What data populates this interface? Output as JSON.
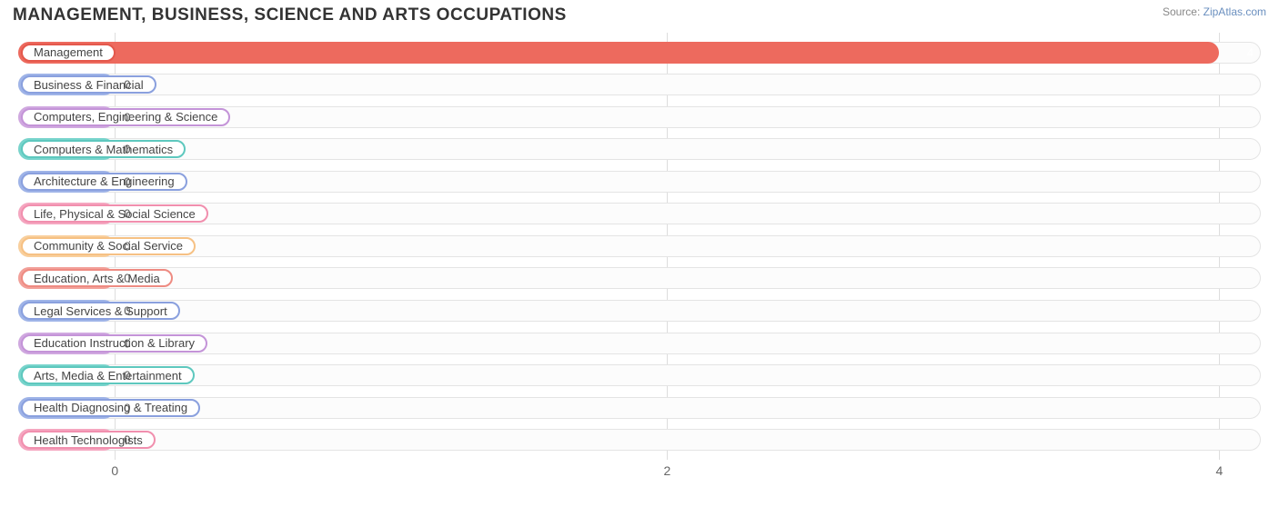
{
  "title": "MANAGEMENT, BUSINESS, SCIENCE AND ARTS OCCUPATIONS",
  "source_prefix": "Source: ",
  "source_link": "ZipAtlas.com",
  "chart": {
    "type": "bar-horizontal",
    "xmin": -0.35,
    "xmax": 4.15,
    "xticks": [
      0,
      2,
      4
    ],
    "track_bg": "#fcfcfc",
    "track_border": "#e4e4e4",
    "grid_color": "#dddddd",
    "pill_bg": "#ffffff",
    "label_fontsize": 13,
    "title_fontsize": 19,
    "title_color": "#333333",
    "bars": [
      {
        "label": "Management",
        "value": 4,
        "fill": "#ed6a5e",
        "border": "#e4584c"
      },
      {
        "label": "Business & Financial",
        "value": 0,
        "fill": "#9fb4e8",
        "border": "#8aa0de"
      },
      {
        "label": "Computers, Engineering & Science",
        "value": 0,
        "fill": "#d0a8e0",
        "border": "#c494d8"
      },
      {
        "label": "Computers & Mathematics",
        "value": 0,
        "fill": "#78d4cc",
        "border": "#5ec8be"
      },
      {
        "label": "Architecture & Engineering",
        "value": 0,
        "fill": "#9fb4e8",
        "border": "#8aa0de"
      },
      {
        "label": "Life, Physical & Social Science",
        "value": 0,
        "fill": "#f5a6c0",
        "border": "#f18fae"
      },
      {
        "label": "Community & Social Service",
        "value": 0,
        "fill": "#f9cf9c",
        "border": "#f6c184"
      },
      {
        "label": "Education, Arts & Media",
        "value": 0,
        "fill": "#f2a099",
        "border": "#ee8b82"
      },
      {
        "label": "Legal Services & Support",
        "value": 0,
        "fill": "#9fb4e8",
        "border": "#8aa0de"
      },
      {
        "label": "Education Instruction & Library",
        "value": 0,
        "fill": "#d0a8e0",
        "border": "#c494d8"
      },
      {
        "label": "Arts, Media & Entertainment",
        "value": 0,
        "fill": "#78d4cc",
        "border": "#5ec8be"
      },
      {
        "label": "Health Diagnosing & Treating",
        "value": 0,
        "fill": "#9fb4e8",
        "border": "#8aa0de"
      },
      {
        "label": "Health Technologists",
        "value": 0,
        "fill": "#f5a6c0",
        "border": "#f18fae"
      }
    ]
  }
}
